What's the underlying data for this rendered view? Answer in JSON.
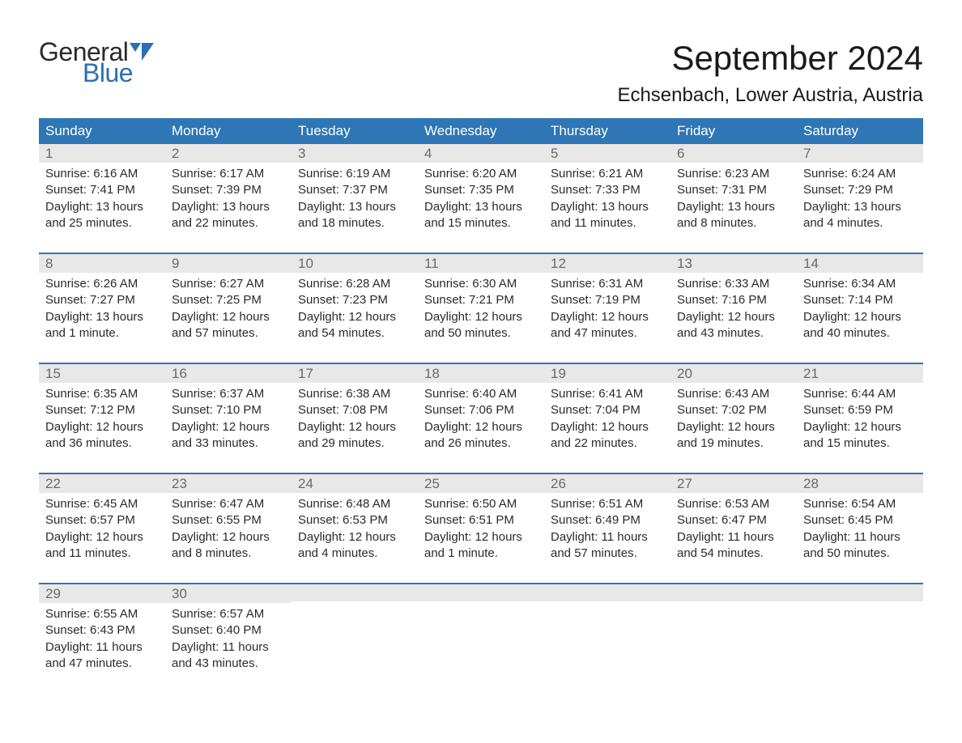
{
  "logo": {
    "general": "General",
    "blue": "Blue"
  },
  "title": "September 2024",
  "location": "Echsenbach, Lower Austria, Austria",
  "colors": {
    "header_bg": "#2e76b6",
    "header_text": "#ffffff",
    "daynum_bg": "#e8e8e8",
    "daynum_text": "#6a6a6a",
    "body_text": "#2b2b2b",
    "logo_blue": "#2b6fb5",
    "week_border": "#2e76b6"
  },
  "typography": {
    "title_fontsize": 42,
    "location_fontsize": 24,
    "weekday_fontsize": 17,
    "daynum_fontsize": 17,
    "body_fontsize": 15
  },
  "weekdays": [
    "Sunday",
    "Monday",
    "Tuesday",
    "Wednesday",
    "Thursday",
    "Friday",
    "Saturday"
  ],
  "labels": {
    "sunrise": "Sunrise:",
    "sunset": "Sunset:",
    "daylight": "Daylight:"
  },
  "weeks": [
    [
      {
        "d": "1",
        "sr": "6:16 AM",
        "ss": "7:41 PM",
        "dl1": "13 hours",
        "dl2": "and 25 minutes."
      },
      {
        "d": "2",
        "sr": "6:17 AM",
        "ss": "7:39 PM",
        "dl1": "13 hours",
        "dl2": "and 22 minutes."
      },
      {
        "d": "3",
        "sr": "6:19 AM",
        "ss": "7:37 PM",
        "dl1": "13 hours",
        "dl2": "and 18 minutes."
      },
      {
        "d": "4",
        "sr": "6:20 AM",
        "ss": "7:35 PM",
        "dl1": "13 hours",
        "dl2": "and 15 minutes."
      },
      {
        "d": "5",
        "sr": "6:21 AM",
        "ss": "7:33 PM",
        "dl1": "13 hours",
        "dl2": "and 11 minutes."
      },
      {
        "d": "6",
        "sr": "6:23 AM",
        "ss": "7:31 PM",
        "dl1": "13 hours",
        "dl2": "and 8 minutes."
      },
      {
        "d": "7",
        "sr": "6:24 AM",
        "ss": "7:29 PM",
        "dl1": "13 hours",
        "dl2": "and 4 minutes."
      }
    ],
    [
      {
        "d": "8",
        "sr": "6:26 AM",
        "ss": "7:27 PM",
        "dl1": "13 hours",
        "dl2": "and 1 minute."
      },
      {
        "d": "9",
        "sr": "6:27 AM",
        "ss": "7:25 PM",
        "dl1": "12 hours",
        "dl2": "and 57 minutes."
      },
      {
        "d": "10",
        "sr": "6:28 AM",
        "ss": "7:23 PM",
        "dl1": "12 hours",
        "dl2": "and 54 minutes."
      },
      {
        "d": "11",
        "sr": "6:30 AM",
        "ss": "7:21 PM",
        "dl1": "12 hours",
        "dl2": "and 50 minutes."
      },
      {
        "d": "12",
        "sr": "6:31 AM",
        "ss": "7:19 PM",
        "dl1": "12 hours",
        "dl2": "and 47 minutes."
      },
      {
        "d": "13",
        "sr": "6:33 AM",
        "ss": "7:16 PM",
        "dl1": "12 hours",
        "dl2": "and 43 minutes."
      },
      {
        "d": "14",
        "sr": "6:34 AM",
        "ss": "7:14 PM",
        "dl1": "12 hours",
        "dl2": "and 40 minutes."
      }
    ],
    [
      {
        "d": "15",
        "sr": "6:35 AM",
        "ss": "7:12 PM",
        "dl1": "12 hours",
        "dl2": "and 36 minutes."
      },
      {
        "d": "16",
        "sr": "6:37 AM",
        "ss": "7:10 PM",
        "dl1": "12 hours",
        "dl2": "and 33 minutes."
      },
      {
        "d": "17",
        "sr": "6:38 AM",
        "ss": "7:08 PM",
        "dl1": "12 hours",
        "dl2": "and 29 minutes."
      },
      {
        "d": "18",
        "sr": "6:40 AM",
        "ss": "7:06 PM",
        "dl1": "12 hours",
        "dl2": "and 26 minutes."
      },
      {
        "d": "19",
        "sr": "6:41 AM",
        "ss": "7:04 PM",
        "dl1": "12 hours",
        "dl2": "and 22 minutes."
      },
      {
        "d": "20",
        "sr": "6:43 AM",
        "ss": "7:02 PM",
        "dl1": "12 hours",
        "dl2": "and 19 minutes."
      },
      {
        "d": "21",
        "sr": "6:44 AM",
        "ss": "6:59 PM",
        "dl1": "12 hours",
        "dl2": "and 15 minutes."
      }
    ],
    [
      {
        "d": "22",
        "sr": "6:45 AM",
        "ss": "6:57 PM",
        "dl1": "12 hours",
        "dl2": "and 11 minutes."
      },
      {
        "d": "23",
        "sr": "6:47 AM",
        "ss": "6:55 PM",
        "dl1": "12 hours",
        "dl2": "and 8 minutes."
      },
      {
        "d": "24",
        "sr": "6:48 AM",
        "ss": "6:53 PM",
        "dl1": "12 hours",
        "dl2": "and 4 minutes."
      },
      {
        "d": "25",
        "sr": "6:50 AM",
        "ss": "6:51 PM",
        "dl1": "12 hours",
        "dl2": "and 1 minute."
      },
      {
        "d": "26",
        "sr": "6:51 AM",
        "ss": "6:49 PM",
        "dl1": "11 hours",
        "dl2": "and 57 minutes."
      },
      {
        "d": "27",
        "sr": "6:53 AM",
        "ss": "6:47 PM",
        "dl1": "11 hours",
        "dl2": "and 54 minutes."
      },
      {
        "d": "28",
        "sr": "6:54 AM",
        "ss": "6:45 PM",
        "dl1": "11 hours",
        "dl2": "and 50 minutes."
      }
    ],
    [
      {
        "d": "29",
        "sr": "6:55 AM",
        "ss": "6:43 PM",
        "dl1": "11 hours",
        "dl2": "and 47 minutes."
      },
      {
        "d": "30",
        "sr": "6:57 AM",
        "ss": "6:40 PM",
        "dl1": "11 hours",
        "dl2": "and 43 minutes."
      },
      null,
      null,
      null,
      null,
      null
    ]
  ]
}
